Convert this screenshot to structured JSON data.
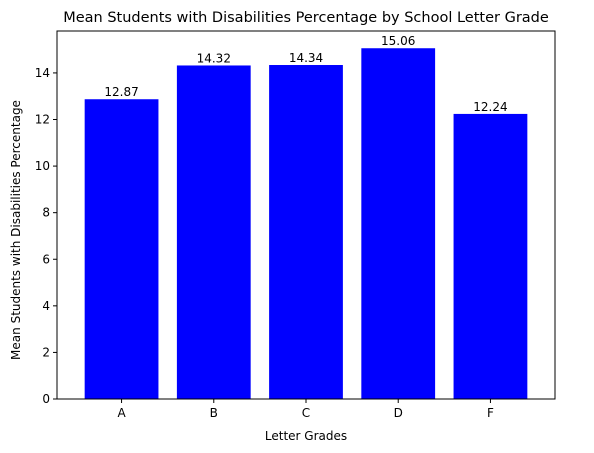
{
  "chart_data": {
    "type": "bar",
    "title": "Mean Students with Disabilities Percentage by School Letter Grade",
    "xlabel": "Letter Grades",
    "ylabel": "Mean Students with Disabilities Percentage",
    "categories": [
      "A",
      "B",
      "C",
      "D",
      "F"
    ],
    "values": [
      12.87,
      14.32,
      14.34,
      15.06,
      12.24
    ],
    "data_labels": [
      "12.87",
      "14.32",
      "14.34",
      "15.06",
      "12.24"
    ],
    "ylim": [
      0,
      15.8
    ],
    "yticks": [
      0,
      2,
      4,
      6,
      8,
      10,
      12,
      14
    ],
    "ytick_labels": [
      "0",
      "2",
      "4",
      "6",
      "8",
      "10",
      "12",
      "14"
    ],
    "bar_color": "#0000ff",
    "grid": false,
    "legend": "none"
  }
}
